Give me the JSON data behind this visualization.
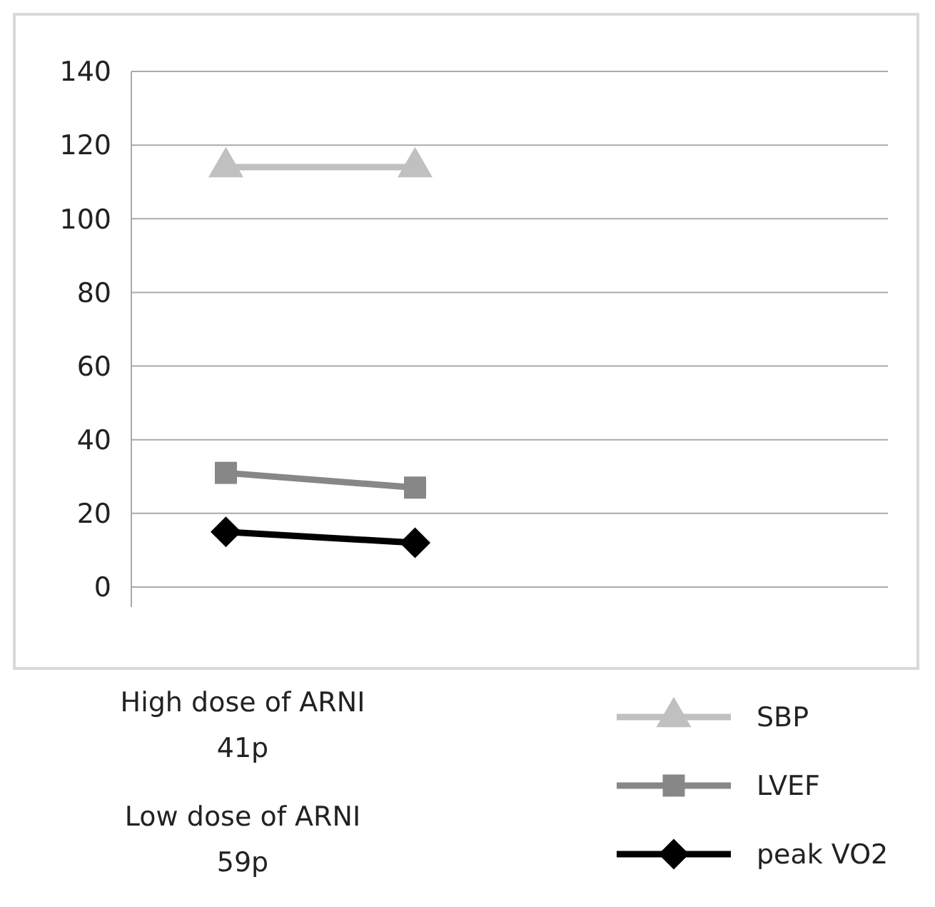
{
  "chart_data": {
    "type": "line",
    "categories": [
      null,
      null,
      null,
      null
    ],
    "series": [
      {
        "name": "SBP",
        "color": "#c0c0c0",
        "marker": "triangle",
        "values": [
          114,
          114,
          null,
          null
        ]
      },
      {
        "name": "LVEF",
        "color": "#878787",
        "marker": "square",
        "values": [
          31,
          27,
          null,
          null
        ]
      },
      {
        "name": "peak VO2",
        "color": "#000000",
        "marker": "diamond",
        "values": [
          15,
          12,
          null,
          null
        ]
      }
    ],
    "ylim": [
      0,
      140
    ],
    "yticks": [
      0,
      20,
      40,
      60,
      80,
      100,
      120,
      140
    ],
    "grid": "y",
    "legend": "bottom right",
    "annotations": [
      "High dose of ARNI",
      "41p",
      "Low dose of ARNI",
      "59p"
    ]
  }
}
